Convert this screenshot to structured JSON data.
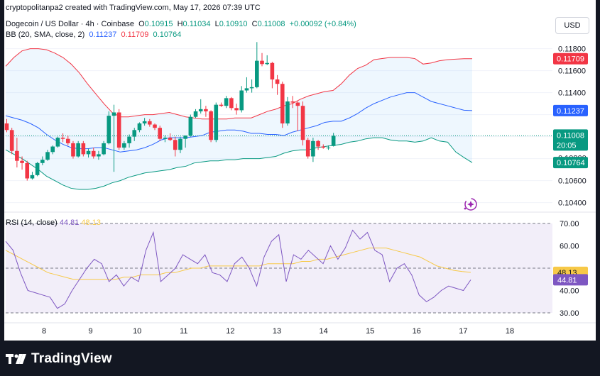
{
  "attribution": "cryptopolitanpa2 created with TradingView.com, May 17, 2026 07:39 UTC",
  "symbol": {
    "name": "Dogecoin / US Dollar · 4h · Coinbase",
    "open_label": "O",
    "open": "0.10915",
    "high_label": "H",
    "high": "0.11034",
    "low_label": "L",
    "low": "0.10910",
    "close_label": "C",
    "close": "0.11008",
    "change": "+0.00092 (+0.84%)"
  },
  "bb": {
    "label": "BB (20, SMA, close, 2)",
    "basis": "0.11237",
    "upper": "0.11709",
    "lower": "0.10764"
  },
  "rsi": {
    "label": "RSI (14, close)",
    "value": "44.81",
    "ma_value": "48.13"
  },
  "currency": "USD",
  "price_axis": [
    "0.11800",
    "0.11600",
    "0.11400",
    "0.10600",
    "0.10400"
  ],
  "partial_axis": "0.10800",
  "price_tags": {
    "upper": "0.11709",
    "basis": "0.11237",
    "close": "0.11008",
    "countdown": "20:05",
    "lower": "0.10764"
  },
  "rsi_axis": [
    "70.00",
    "60.00",
    "40.00",
    "30.00"
  ],
  "rsi_tags": {
    "ma": "48.13",
    "rsi": "44.81"
  },
  "time_axis": [
    "8",
    "9",
    "10",
    "11",
    "12",
    "13",
    "14",
    "15",
    "16",
    "17",
    "18"
  ],
  "brand": "TradingView",
  "colors": {
    "up": "#089981",
    "down": "#f23645",
    "basis": "#2962ff",
    "upper": "#f23645",
    "lower": "#089981",
    "rsi": "#7e57c2",
    "rsi_ma": "#f7c948"
  },
  "chart_data": {
    "type": "candlestick",
    "price_range": [
      0.1032,
      0.1192
    ],
    "candles": [
      [
        0.1112,
        0.1116,
        0.1104,
        0.1106
      ],
      [
        0.1106,
        0.1108,
        0.1084,
        0.1087
      ],
      [
        0.1087,
        0.1099,
        0.1072,
        0.1078
      ],
      [
        0.1078,
        0.1082,
        0.107,
        0.1076
      ],
      [
        0.1076,
        0.1078,
        0.106,
        0.1062
      ],
      [
        0.1062,
        0.1068,
        0.1061,
        0.1065
      ],
      [
        0.1065,
        0.1077,
        0.1064,
        0.1076
      ],
      [
        0.1076,
        0.1082,
        0.1074,
        0.1079
      ],
      [
        0.1079,
        0.1088,
        0.1078,
        0.1086
      ],
      [
        0.1086,
        0.1092,
        0.1084,
        0.1091
      ],
      [
        0.1091,
        0.11,
        0.109,
        0.1099
      ],
      [
        0.1099,
        0.1103,
        0.1095,
        0.1098
      ],
      [
        0.1098,
        0.1101,
        0.1092,
        0.1094
      ],
      [
        0.1094,
        0.1096,
        0.108,
        0.1082
      ],
      [
        0.1082,
        0.1096,
        0.1081,
        0.1094
      ],
      [
        0.1094,
        0.1096,
        0.1082,
        0.1084
      ],
      [
        0.1084,
        0.1089,
        0.1081,
        0.1087
      ],
      [
        0.1087,
        0.109,
        0.108,
        0.1082
      ],
      [
        0.1082,
        0.1087,
        0.1079,
        0.1084
      ],
      [
        0.1084,
        0.1096,
        0.1083,
        0.1094
      ],
      [
        0.1094,
        0.1123,
        0.1093,
        0.1119
      ],
      [
        0.1119,
        0.1129,
        0.1068,
        0.1122
      ],
      [
        0.1122,
        0.1125,
        0.1088,
        0.109
      ],
      [
        0.109,
        0.1096,
        0.1088,
        0.1094
      ],
      [
        0.1094,
        0.1102,
        0.109,
        0.11
      ],
      [
        0.11,
        0.1108,
        0.1096,
        0.1106
      ],
      [
        0.1106,
        0.1113,
        0.1104,
        0.1112
      ],
      [
        0.1112,
        0.1117,
        0.111,
        0.1114
      ],
      [
        0.1114,
        0.1116,
        0.1109,
        0.1111
      ],
      [
        0.1111,
        0.1112,
        0.1106,
        0.1108
      ],
      [
        0.1108,
        0.111,
        0.1096,
        0.1098
      ],
      [
        0.1098,
        0.1101,
        0.1095,
        0.1099
      ],
      [
        0.1099,
        0.1103,
        0.1096,
        0.1097
      ],
      [
        0.1097,
        0.11,
        0.1082,
        0.1088
      ],
      [
        0.1088,
        0.11,
        0.1085,
        0.1098
      ],
      [
        0.1098,
        0.1101,
        0.109,
        0.1101
      ],
      [
        0.1101,
        0.112,
        0.11,
        0.1118
      ],
      [
        0.1118,
        0.1125,
        0.1117,
        0.1123
      ],
      [
        0.1123,
        0.1134,
        0.1121,
        0.1125
      ],
      [
        0.1125,
        0.1128,
        0.1118,
        0.1123
      ],
      [
        0.1123,
        0.1124,
        0.1095,
        0.1097
      ],
      [
        0.1097,
        0.1131,
        0.1095,
        0.1129
      ],
      [
        0.1129,
        0.1131,
        0.1127,
        0.1128
      ],
      [
        0.1128,
        0.1137,
        0.1126,
        0.1135
      ],
      [
        0.1135,
        0.1136,
        0.1124,
        0.1126
      ],
      [
        0.1126,
        0.113,
        0.112,
        0.1124
      ],
      [
        0.1124,
        0.1146,
        0.1122,
        0.1142
      ],
      [
        0.1142,
        0.1154,
        0.114,
        0.1144
      ],
      [
        0.1144,
        0.1152,
        0.114,
        0.1145
      ],
      [
        0.1145,
        0.1186,
        0.1144,
        0.1169
      ],
      [
        0.1169,
        0.1176,
        0.1164,
        0.1166
      ],
      [
        0.1166,
        0.1174,
        0.1165,
        0.1167
      ],
      [
        0.1167,
        0.1168,
        0.1144,
        0.1152
      ],
      [
        0.1152,
        0.1156,
        0.1138,
        0.1148
      ],
      [
        0.1148,
        0.115,
        0.1108,
        0.1112
      ],
      [
        0.1112,
        0.1136,
        0.111,
        0.1132
      ],
      [
        0.1132,
        0.1137,
        0.1126,
        0.1131
      ],
      [
        0.1131,
        0.1132,
        0.1105,
        0.1128
      ],
      [
        0.1128,
        0.1132,
        0.1092,
        0.1097
      ],
      [
        0.1097,
        0.1099,
        0.108,
        0.1082
      ],
      [
        0.1082,
        0.1099,
        0.1077,
        0.1096
      ],
      [
        0.1096,
        0.1097,
        0.1088,
        0.1091
      ],
      [
        0.1091,
        0.1093,
        0.1089,
        0.109
      ],
      [
        0.109,
        0.1092,
        0.1088,
        0.109
      ],
      [
        0.10915,
        0.11034,
        0.1091,
        0.11008
      ]
    ],
    "bb_upper": [
      0.1164,
      0.1172,
      0.1178,
      0.118,
      0.118,
      0.1179,
      0.1176,
      0.1172,
      0.1166,
      0.1158,
      0.1148,
      0.1139,
      0.113,
      0.1122,
      0.1118,
      0.1118,
      0.1119,
      0.112,
      0.112,
      0.1121,
      0.1122,
      0.112,
      0.1118,
      0.1117,
      0.1116,
      0.1116,
      0.1116,
      0.1116,
      0.1117,
      0.1117,
      0.1117,
      0.112,
      0.1123,
      0.1125,
      0.1128,
      0.113,
      0.1134,
      0.1137,
      0.1139,
      0.1141,
      0.1142,
      0.1148,
      0.1156,
      0.1162,
      0.1165,
      0.117,
      0.1171,
      0.1172,
      0.1172,
      0.1172,
      0.1171,
      0.1166,
      0.1167,
      0.1169,
      0.117,
      0.11705,
      0.11709,
      0.11709
    ],
    "bb_basis": [
      0.1119,
      0.1117,
      0.1115,
      0.1112,
      0.1108,
      0.1102,
      0.1097,
      0.1093,
      0.109,
      0.1089,
      0.1089,
      0.109,
      0.109,
      0.1088,
      0.1086,
      0.1087,
      0.1088,
      0.109,
      0.1093,
      0.1097,
      0.1099,
      0.1099,
      0.1099,
      0.11,
      0.1101,
      0.1104,
      0.1105,
      0.1106,
      0.1106,
      0.1105,
      0.1103,
      0.1103,
      0.1102,
      0.1102,
      0.1101,
      0.1104,
      0.1106,
      0.1108,
      0.111,
      0.1113,
      0.1114,
      0.1114,
      0.1117,
      0.1121,
      0.1126,
      0.113,
      0.1133,
      0.1136,
      0.1138,
      0.114,
      0.114,
      0.1136,
      0.1132,
      0.113,
      0.1128,
      0.1126,
      0.1124,
      0.11237
    ],
    "bb_lower": [
      0.1088,
      0.1084,
      0.108,
      0.1075,
      0.107,
      0.1064,
      0.106,
      0.1056,
      0.1053,
      0.1052,
      0.1052,
      0.1053,
      0.1055,
      0.1058,
      0.106,
      0.1063,
      0.1065,
      0.1067,
      0.1068,
      0.1069,
      0.107,
      0.1072,
      0.1073,
      0.1076,
      0.1077,
      0.1078,
      0.1078,
      0.1079,
      0.1079,
      0.108,
      0.108,
      0.108,
      0.1081,
      0.1082,
      0.1085,
      0.1087,
      0.1088,
      0.1088,
      0.109,
      0.1091,
      0.1092,
      0.1093,
      0.1095,
      0.1096,
      0.1098,
      0.1099,
      0.1099,
      0.1097,
      0.1096,
      0.1096,
      0.1095,
      0.1096,
      0.1099,
      0.1096,
      0.1095,
      0.1086,
      0.1081,
      0.10764
    ],
    "rsi": [
      62,
      58,
      48,
      40,
      39,
      38,
      37,
      32,
      34,
      40,
      45,
      50,
      54,
      52,
      44,
      47,
      42,
      46,
      44,
      58,
      66,
      44,
      47,
      50,
      56,
      54,
      52,
      56,
      48,
      47,
      44,
      52,
      55,
      50,
      42,
      55,
      62,
      65,
      44,
      56,
      54,
      58,
      55,
      52,
      60,
      54,
      59,
      67,
      63,
      66,
      58,
      56,
      44,
      50,
      52,
      47,
      38,
      35,
      37,
      40,
      42,
      41,
      40,
      44.81
    ],
    "rsi_ma": [
      58,
      56,
      54,
      52,
      50,
      48,
      47,
      46,
      45,
      45,
      45,
      45,
      45,
      45,
      46,
      46,
      47,
      47,
      47,
      48,
      48,
      49,
      50,
      50,
      51,
      51,
      51,
      51,
      51,
      51,
      51,
      52,
      52,
      52,
      52,
      53,
      53,
      54,
      54,
      55,
      56,
      57,
      58,
      59,
      59,
      59,
      58,
      57,
      56,
      55,
      53,
      51,
      50,
      49,
      48.5,
      48.13
    ],
    "rsi_levels": [
      70,
      50,
      30
    ],
    "rsi_range": [
      25,
      75
    ]
  }
}
